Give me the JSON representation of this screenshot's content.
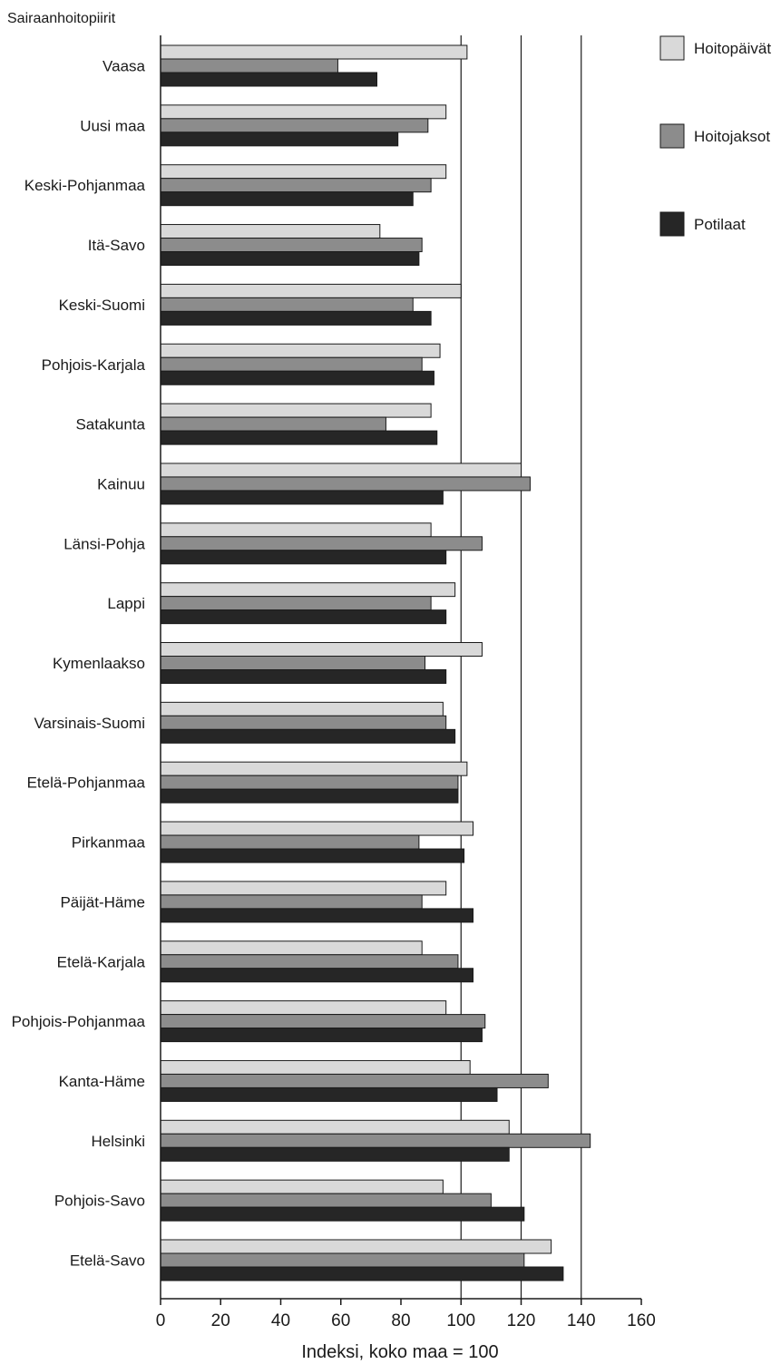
{
  "chart_data": {
    "type": "bar",
    "orientation": "horizontal",
    "ylabel": "Sairaanhoitopiirit",
    "xlabel": "Indeksi, koko maa = 100",
    "xlim": [
      0,
      160
    ],
    "xticks": [
      0,
      20,
      40,
      60,
      80,
      100,
      120,
      140,
      160
    ],
    "grid": "vertical lines at 100, 120, 140",
    "legend_position": "right",
    "categories": [
      "Vaasa",
      "Uusi maa",
      "Keski-Pohjanmaa",
      "Itä-Savo",
      "Keski-Suomi",
      "Pohjois-Karjala",
      "Satakunta",
      "Kainuu",
      "Länsi-Pohja",
      "Lappi",
      "Kymenlaakso",
      "Varsinais-Suomi",
      "Etelä-Pohjanmaa",
      "Pirkanmaa",
      "Päijät-Häme",
      "Etelä-Karjala",
      "Pohjois-Pohjanmaa",
      "Kanta-Häme",
      "Helsinki",
      "Pohjois-Savo",
      "Etelä-Savo"
    ],
    "series": [
      {
        "name": "Hoitopäivät",
        "color": "#d9d9d9",
        "values": [
          102,
          95,
          95,
          73,
          100,
          93,
          90,
          120,
          90,
          98,
          107,
          94,
          102,
          104,
          95,
          87,
          95,
          103,
          116,
          94,
          130
        ]
      },
      {
        "name": "Hoitojaksot",
        "color": "#8c8c8c",
        "values": [
          59,
          89,
          90,
          87,
          84,
          87,
          75,
          123,
          107,
          90,
          88,
          95,
          99,
          86,
          87,
          99,
          108,
          129,
          143,
          110,
          121
        ]
      },
      {
        "name": "Potilaat",
        "color": "#262626",
        "values": [
          72,
          79,
          84,
          86,
          90,
          91,
          92,
          94,
          95,
          95,
          95,
          98,
          99,
          101,
          104,
          104,
          107,
          112,
          116,
          121,
          134
        ]
      }
    ]
  }
}
